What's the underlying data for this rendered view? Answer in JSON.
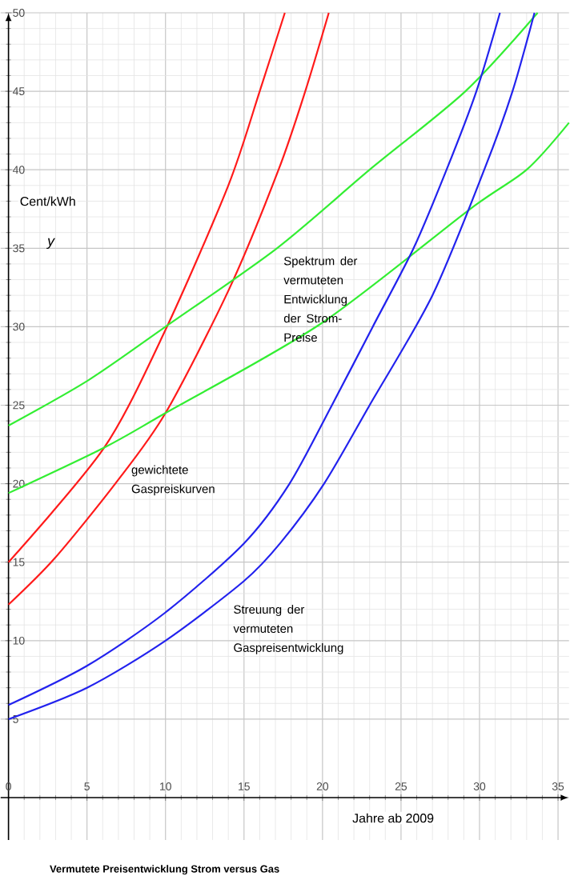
{
  "chart_data": {
    "type": "line",
    "xlabel": "Jahre ab 2009",
    "ylabel": "Cent/kWh",
    "xlim": [
      -0.5,
      35.7
    ],
    "ylim": [
      -2.7,
      50
    ],
    "xticks": [
      0,
      5,
      10,
      15,
      20,
      25,
      30,
      35
    ],
    "yticks": [
      5,
      10,
      15,
      20,
      25,
      30,
      35,
      40,
      45,
      50
    ],
    "grid": true,
    "marker": "none",
    "line_style": "solid",
    "series": [
      {
        "color": "#ff1a1a",
        "x": [
          0,
          6.1,
          10,
          14,
          16,
          17.6
        ],
        "values": [
          15,
          22.3,
          29.8,
          39,
          45,
          50
        ]
      },
      {
        "color": "#ff1a1a",
        "x": [
          0,
          2.9,
          6.8,
          10,
          14.1,
          17.2,
          18.9,
          20.4
        ],
        "values": [
          12.3,
          15.2,
          20,
          24.5,
          32.5,
          40,
          45,
          50
        ]
      },
      {
        "color": "#33ee33",
        "x": [
          0,
          5.1,
          10,
          17.1,
          23,
          29.1,
          33.7
        ],
        "values": [
          23.7,
          26.6,
          30,
          35,
          40,
          45,
          50
        ]
      },
      {
        "color": "#33ee33",
        "x": [
          0,
          6.1,
          10,
          19.9,
          29.4,
          33,
          35.7
        ],
        "values": [
          19.4,
          22.3,
          24.5,
          30.2,
          37.5,
          40,
          43
        ]
      },
      {
        "color": "#2222ee",
        "x": [
          0,
          5,
          10,
          15,
          17.9,
          20.6,
          23.2,
          25.8,
          27.9,
          29.8,
          31.3
        ],
        "values": [
          5.9,
          8.4,
          11.8,
          16.2,
          20,
          25,
          30,
          35,
          40,
          45,
          50
        ]
      },
      {
        "color": "#2222ee",
        "x": [
          0,
          5,
          10,
          15,
          17.3,
          20.1,
          23,
          27,
          30.3,
          32.1,
          33.5
        ],
        "values": [
          5,
          7,
          10,
          13.8,
          16.2,
          20,
          25,
          32,
          40,
          45,
          50
        ]
      }
    ],
    "annotations": [
      "Spektrum der vermuteten Entwicklung der Strom-Preise",
      "gewichtete Gaspreiskurven",
      "Streuung der vermuteten Gaspreisentwicklung",
      "y",
      "Vermutete Preisentwicklung Strom versus Gas"
    ]
  }
}
